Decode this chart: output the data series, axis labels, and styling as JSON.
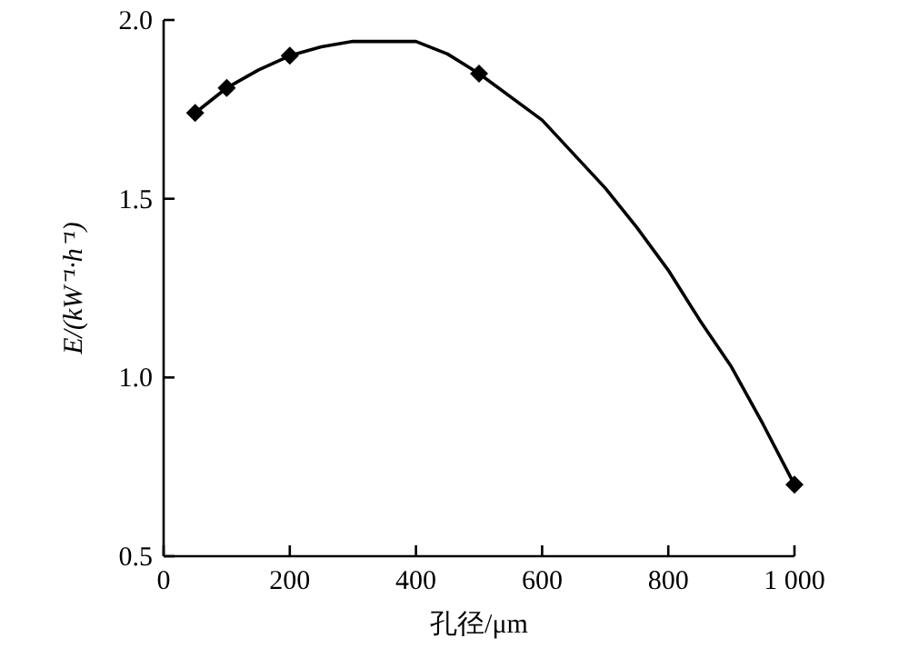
{
  "chart_data": {
    "type": "line",
    "xlabel": "孔径/μm",
    "ylabel": "E/(kW⁻¹·h⁻¹)",
    "xlim": [
      0,
      1000
    ],
    "xticks": [
      0,
      200,
      400,
      600,
      800,
      {
        "value": 1000,
        "label": "1 000"
      }
    ],
    "ylim": [
      0.5,
      2.0
    ],
    "yticks": [
      0.5,
      {
        "value": 1,
        "label": "1.0"
      },
      1.5,
      {
        "value": 2,
        "label": "2.0"
      }
    ],
    "grid": false,
    "series": [
      {
        "type": "line",
        "color": "#000000",
        "marker": "none",
        "line_style": "solid",
        "x": [
          50,
          100,
          150,
          200,
          250,
          300,
          350,
          400,
          450,
          500,
          600,
          700,
          750,
          800,
          850,
          900,
          950,
          1000
        ],
        "values": [
          1.74,
          1.81,
          1.86,
          1.9,
          1.925,
          1.94,
          1.94,
          1.94,
          1.905,
          1.85,
          1.72,
          1.53,
          1.42,
          1.3,
          1.16,
          1.03,
          0.87,
          0.7
        ]
      },
      {
        "type": "scatter",
        "color": "#000000",
        "marker": "diamond",
        "x": [
          50,
          100,
          200,
          500,
          1000
        ],
        "values": [
          1.74,
          1.81,
          1.9,
          1.85,
          0.7
        ]
      }
    ]
  }
}
